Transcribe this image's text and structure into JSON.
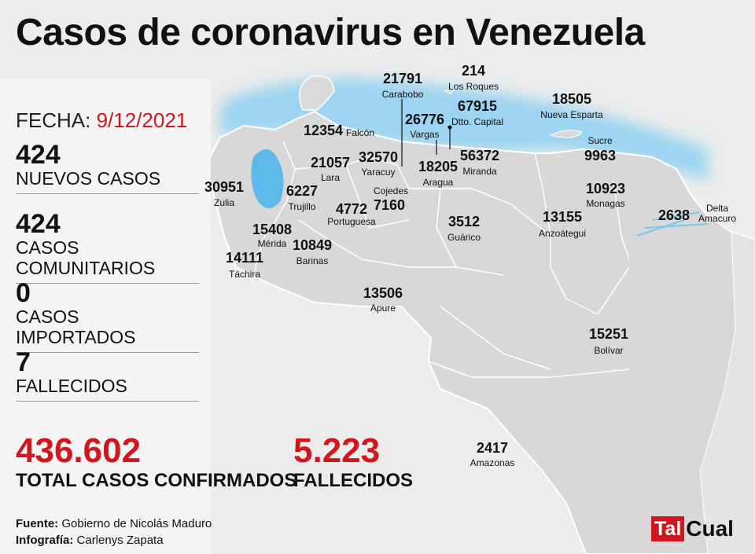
{
  "title": "Casos de coronavirus en Venezuela",
  "fecha": {
    "label": "FECHA:",
    "date": "9/12/2021"
  },
  "stats": [
    {
      "value": "424",
      "label": "NUEVOS CASOS"
    },
    {
      "value": "424",
      "label": "CASOS COMUNITARIOS"
    },
    {
      "value": "0",
      "label": "CASOS IMPORTADOS"
    },
    {
      "value": "7",
      "label": "FALLECIDOS"
    }
  ],
  "totals": {
    "confirmed_value": "436.602",
    "confirmed_label": "TOTAL CASOS CONFIRMADOS",
    "deaths_value": "5.223",
    "deaths_label": "FALLECIDOS"
  },
  "credits": {
    "source_label": "Fuente:",
    "source_value": "Gobierno de Nicolás Maduro",
    "graphic_label": "Infografía:",
    "graphic_value": "Carlenys Zapata"
  },
  "logo": {
    "part1": "Tal",
    "part2": "Cual"
  },
  "colors": {
    "accent": "#d2161e",
    "sea": "#7cc6ee",
    "land": "#d9d9d9",
    "border": "#ffffff"
  },
  "states": [
    {
      "name": "Zulia",
      "cases": "30951"
    },
    {
      "name": "Falcón",
      "cases": "12354"
    },
    {
      "name": "Lara",
      "cases": "21057"
    },
    {
      "name": "Yaracuy",
      "cases": "32570"
    },
    {
      "name": "Carabobo",
      "cases": "21791"
    },
    {
      "name": "Los Roques",
      "cases": "214"
    },
    {
      "name": "Dtto. Capital",
      "cases": "67915"
    },
    {
      "name": "Vargas",
      "cases": "26776"
    },
    {
      "name": "Miranda",
      "cases": "56372"
    },
    {
      "name": "Aragua",
      "cases": "18205"
    },
    {
      "name": "Cojedes",
      "cases": "7160"
    },
    {
      "name": "Trujillo",
      "cases": "6227"
    },
    {
      "name": "Portuguesa",
      "cases": "4772"
    },
    {
      "name": "Mérida",
      "cases": "15408"
    },
    {
      "name": "Táchira",
      "cases": "14111"
    },
    {
      "name": "Barinas",
      "cases": "10849"
    },
    {
      "name": "Guárico",
      "cases": "3512"
    },
    {
      "name": "Nueva Esparta",
      "cases": "18505"
    },
    {
      "name": "Sucre",
      "cases": "9963"
    },
    {
      "name": "Monagas",
      "cases": "10923"
    },
    {
      "name": "Anzoátegui",
      "cases": "13155"
    },
    {
      "name": "Delta Amacuro",
      "cases": "2638"
    },
    {
      "name": "Apure",
      "cases": "13506"
    },
    {
      "name": "Bolívar",
      "cases": "15251"
    },
    {
      "name": "Amazonas",
      "cases": "2417"
    }
  ]
}
